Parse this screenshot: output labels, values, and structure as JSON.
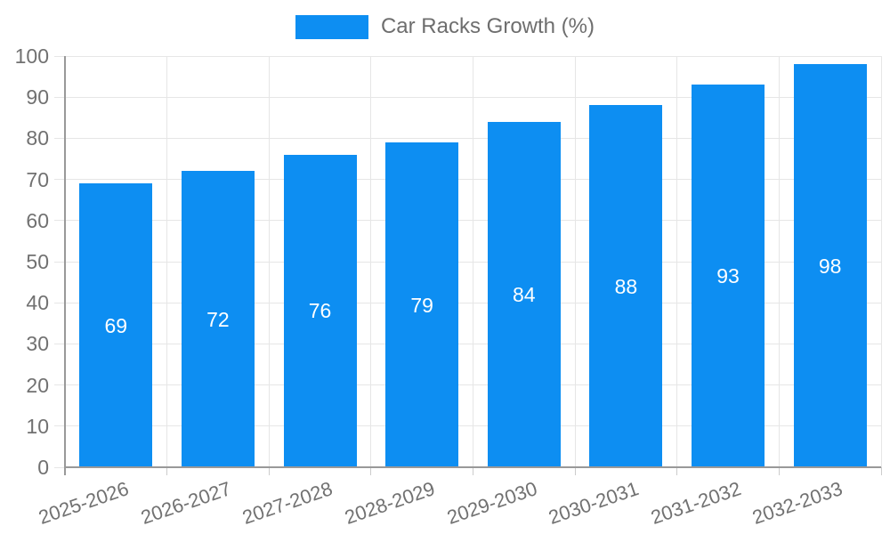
{
  "chart_data": {
    "type": "bar",
    "legend": "Car Racks Growth (%)",
    "categories": [
      "2025-2026",
      "2026-2027",
      "2027-2028",
      "2028-2029",
      "2029-2030",
      "2030-2031",
      "2031-2032",
      "2032-2033"
    ],
    "values": [
      69,
      72,
      76,
      79,
      84,
      88,
      93,
      98
    ],
    "ylim": [
      0,
      100
    ],
    "ytick_step": 10,
    "grid": true,
    "legend_position": "top",
    "value_labels": "inside-center",
    "colors": {
      "bar": "#0d8ef2",
      "value_label": "#ffffff",
      "grid": "#e6e6e6",
      "axis": "#999999",
      "minor_tick": "#cccccc",
      "tick_text": "#717171",
      "legend_text": "#6e6e6e",
      "background": "#ffffff"
    }
  }
}
